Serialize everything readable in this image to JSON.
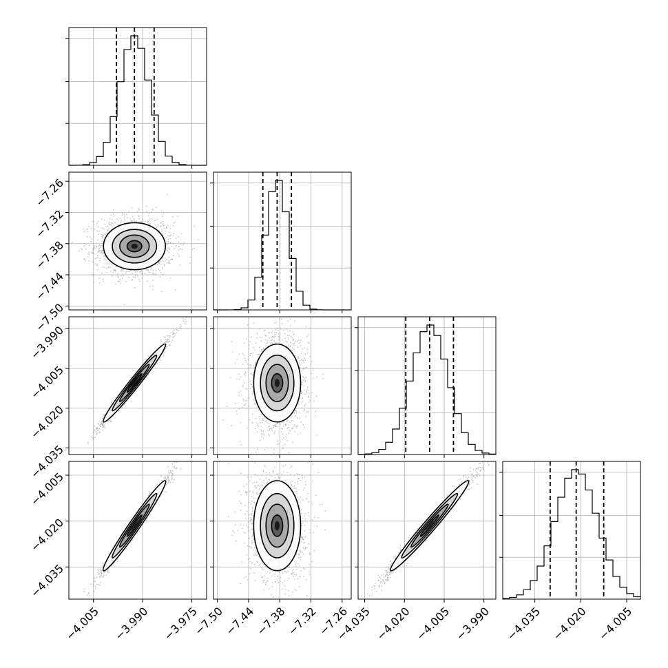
{
  "chart_data": {
    "type": "corner",
    "grid": true,
    "parameters": [
      {
        "median": -3.9925,
        "lo": -3.998,
        "hi": -3.9865,
        "range": [
          -4.0125,
          -3.9705
        ],
        "sigma": 0.0045
      },
      {
        "median": -7.385,
        "lo": -7.4125,
        "hi": -7.3575,
        "range": [
          -7.5075,
          -7.2425
        ],
        "sigma": 0.0215
      },
      {
        "median": -4.0105,
        "lo": -4.0195,
        "hi": -4.0015,
        "range": [
          -4.0375,
          -3.9855
        ],
        "sigma": 0.007
      },
      {
        "median": -4.0215,
        "lo": -4.03,
        "hi": -4.0125,
        "range": [
          -4.0455,
          -4.0005
        ],
        "sigma": 0.007
      }
    ],
    "correlations": [
      [
        1,
        0,
        0.99,
        0.99
      ],
      [
        0,
        1,
        0,
        0
      ],
      [
        0.99,
        0,
        1,
        0.99
      ],
      [
        0.99,
        0,
        0.99,
        1
      ]
    ],
    "tick_labels": {
      "x": [
        {
          "values": [
            -4.005,
            -3.99,
            -3.975
          ],
          "labels": [
            "−4.005",
            "−3.990",
            "−3.975"
          ]
        },
        {
          "values": [
            -7.5,
            -7.44,
            -7.38,
            -7.32,
            -7.26
          ],
          "labels": [
            "−7.50",
            "−7.44",
            "−7.38",
            "−7.32",
            "−7.26"
          ]
        },
        {
          "values": [
            -4.035,
            -4.02,
            -4.005,
            -3.99
          ],
          "labels": [
            "−4.035",
            "−4.020",
            "−4.005",
            "−3.990"
          ]
        },
        {
          "values": [
            -4.035,
            -4.02,
            -4.005
          ],
          "labels": [
            "−4.035",
            "−4.020",
            "−4.005"
          ]
        }
      ],
      "y": [
        null,
        {
          "values": [
            -7.5,
            -7.44,
            -7.38,
            -7.32,
            -7.26
          ],
          "labels": [
            "−7.50",
            "−7.44",
            "−7.38",
            "−7.32",
            "−7.26"
          ]
        },
        {
          "values": [
            -4.035,
            -4.02,
            -4.005,
            -3.99
          ],
          "labels": [
            "−4.035",
            "−4.020",
            "−4.005",
            "−3.990"
          ]
        },
        {
          "values": [
            -4.035,
            -4.02,
            -4.005
          ],
          "labels": [
            "−4.035",
            "−4.020",
            "−4.005"
          ]
        }
      ]
    },
    "histogram_bins": 20,
    "quantiles": [
      0.16,
      0.5,
      0.84
    ]
  }
}
